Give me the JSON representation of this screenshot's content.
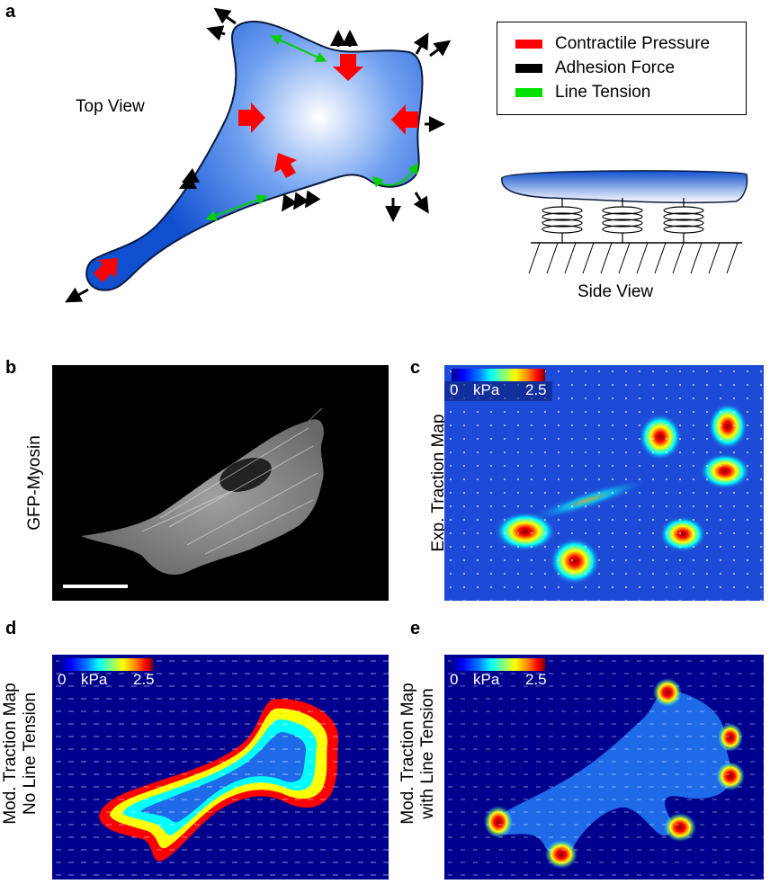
{
  "panels": {
    "a": {
      "letter": "a",
      "top_view_label": "Top View",
      "side_view_label": "Side View",
      "legend": [
        {
          "label": "Contractile Pressure",
          "color": "#ff0000"
        },
        {
          "label": "Adhesion Force",
          "color": "#000000"
        },
        {
          "label": "Line Tension",
          "color": "#00e000"
        }
      ]
    },
    "b": {
      "letter": "b",
      "ylabel": "GFP-Myosin"
    },
    "c": {
      "letter": "c",
      "ylabel": "Exp. Traction Map",
      "cb_min": "0",
      "cb_unit": "kPa",
      "cb_max": "2.5"
    },
    "d": {
      "letter": "d",
      "ylabel_line1": "Mod. Traction Map",
      "ylabel_line2": "No Line Tension",
      "cb_min": "0",
      "cb_unit": "kPa",
      "cb_max": "2.5"
    },
    "e": {
      "letter": "e",
      "ylabel_line1": "Mod. Traction Map",
      "ylabel_line2": "with Line Tension",
      "cb_min": "0",
      "cb_unit": "kPa",
      "cb_max": "2.5"
    }
  }
}
